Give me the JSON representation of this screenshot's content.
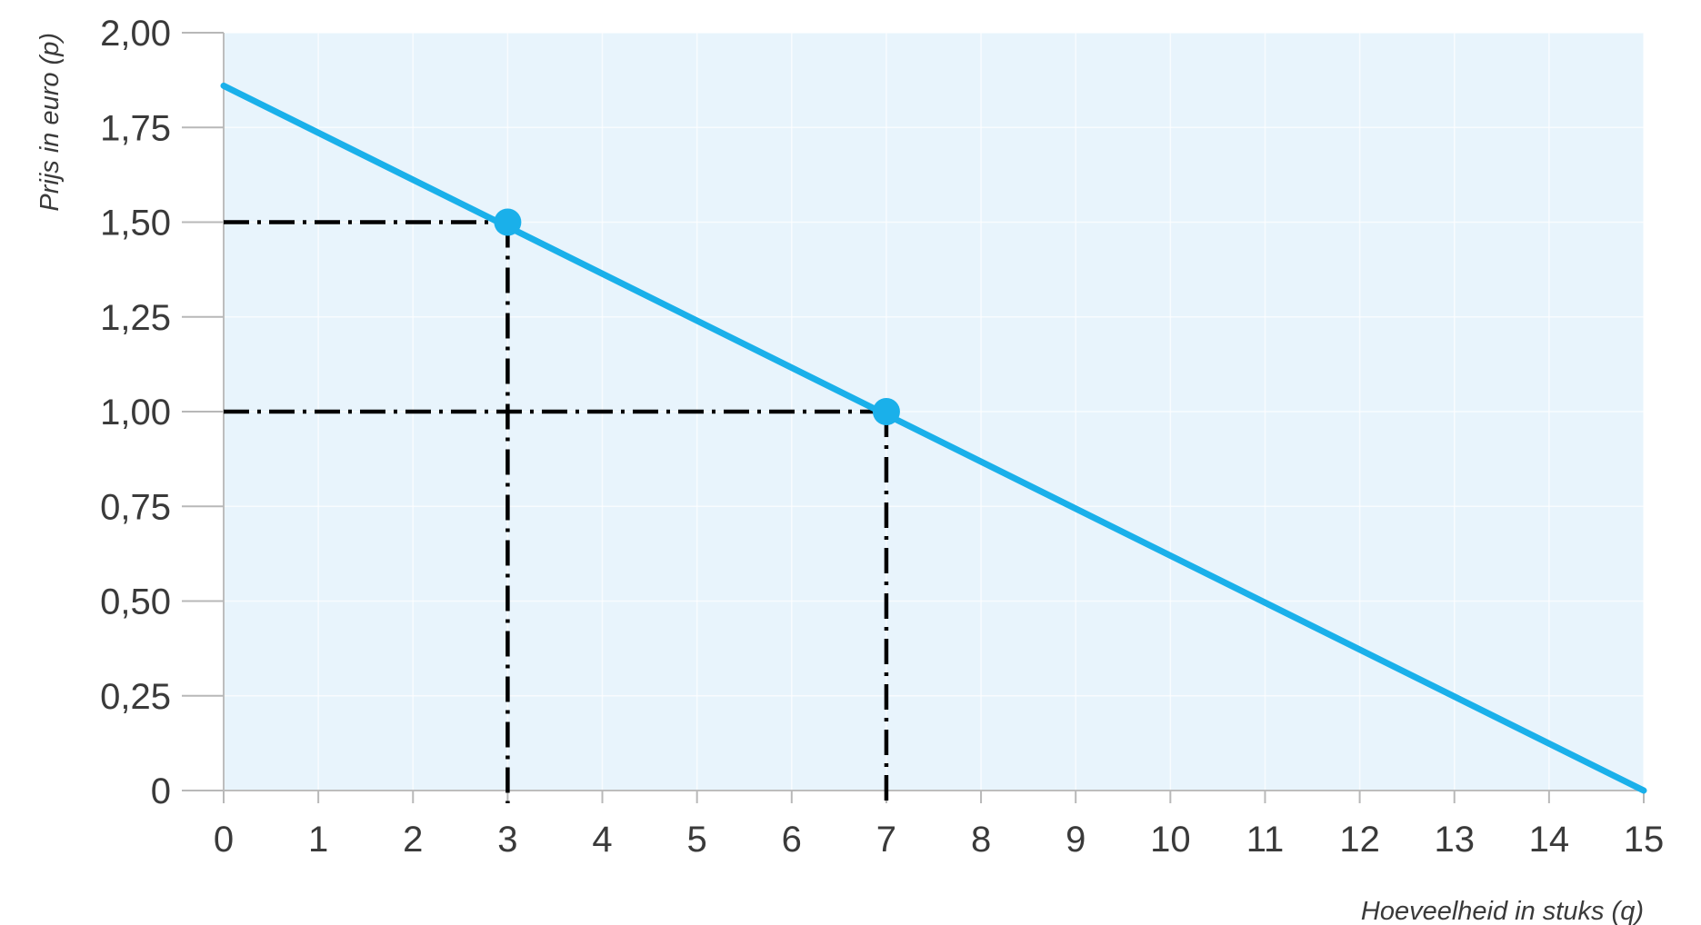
{
  "chart_data": {
    "type": "line",
    "xlabel": "Hoeveelheid in stuks (q)",
    "ylabel": "Prijs in euro (p)",
    "xlim": [
      0,
      15
    ],
    "ylim": [
      0,
      2
    ],
    "x_ticks": [
      "0",
      "1",
      "2",
      "3",
      "4",
      "5",
      "6",
      "7",
      "8",
      "9",
      "10",
      "11",
      "12",
      "13",
      "14",
      "15"
    ],
    "y_ticks": [
      "0",
      "0,25",
      "0,50",
      "0,75",
      "1,00",
      "1,25",
      "1,50",
      "1,75",
      "2,00"
    ],
    "grid": true,
    "series": [
      {
        "x": [
          0,
          15
        ],
        "y": [
          1.86,
          0
        ]
      }
    ],
    "highlighted_points": [
      {
        "x": 3,
        "y": 1.5
      },
      {
        "x": 7,
        "y": 1.0
      }
    ],
    "colors": {
      "line": "#1ab0ea",
      "plot_background": "#e8f4fc",
      "guide": "#000000"
    }
  }
}
